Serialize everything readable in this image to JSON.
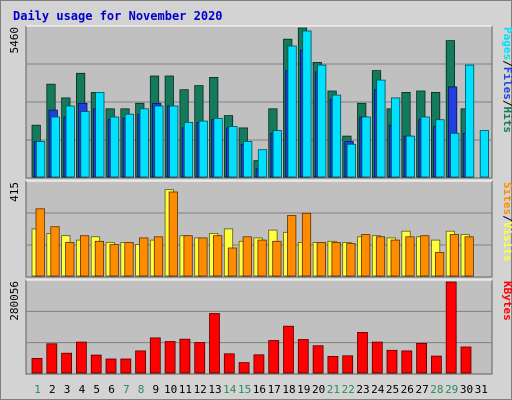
{
  "chart_data": {
    "type": "bar",
    "title": "Daily usage for November 2020",
    "categories": [
      "1",
      "2",
      "3",
      "4",
      "5",
      "6",
      "7",
      "8",
      "9",
      "10",
      "11",
      "12",
      "13",
      "14",
      "15",
      "16",
      "17",
      "18",
      "19",
      "20",
      "21",
      "22",
      "23",
      "24",
      "25",
      "26",
      "27",
      "28",
      "29",
      "30",
      "31"
    ],
    "weekend_days": [
      "1",
      "7",
      "8",
      "14",
      "15",
      "21",
      "22",
      "28",
      "29"
    ],
    "colors": {
      "title": "#0000cc",
      "hits": "#157a5b",
      "files": "#1f3fe0",
      "pages": "#00e0ff",
      "visits": "#ffff40",
      "sites": "#ff8c00",
      "kbytes": "#ff0000",
      "weekday_label": "#000000",
      "weekend_label": "#2a8a5a",
      "plot_background": "#c0c0c0",
      "frame_background": "#d3d3d3"
    },
    "panels": [
      {
        "id": "requests",
        "ymax_label": "5460",
        "ymax": 5460,
        "grid": true,
        "legend": [
          "Pages",
          "Files",
          "Hits"
        ],
        "series": [
          {
            "name": "Hits",
            "color": "#157a5b",
            "values": [
              1900,
              3400,
              2900,
              3800,
              3100,
              2500,
              2500,
              2700,
              3700,
              3700,
              3200,
              3350,
              3650,
              2250,
              1800,
              600,
              2500,
              5050,
              5460,
              4200,
              3150,
              1500,
              2700,
              3900,
              2500,
              3100,
              3150,
              3100,
              5000,
              2500,
              0
            ]
          },
          {
            "name": "Files",
            "color": "#1f3fe0",
            "values": [
              1300,
              2450,
              2200,
              2700,
              2500,
              2100,
              2150,
              2300,
              2700,
              2600,
              1800,
              2000,
              2100,
              1800,
              1200,
              300,
              1600,
              3900,
              4650,
              3850,
              2850,
              1300,
              2200,
              3200,
              1900,
              1500,
              2100,
              1850,
              3300,
              1600,
              0
            ]
          },
          {
            "name": "Pages",
            "color": "#00e0ff",
            "values": [
              1300,
              2200,
              2600,
              2400,
              3100,
              2200,
              2300,
              2500,
              2600,
              2600,
              2000,
              2050,
              2150,
              1850,
              1300,
              1000,
              1700,
              4800,
              5350,
              4100,
              3000,
              1200,
              2200,
              3550,
              2900,
              1500,
              2200,
              2100,
              1600,
              4100,
              1700
            ]
          }
        ]
      },
      {
        "id": "visitors",
        "ymax_label": "415",
        "ymax": 415,
        "grid": true,
        "legend": [
          "Sites",
          "Visits"
        ],
        "series": [
          {
            "name": "Visits",
            "color": "#ffff40",
            "values": [
              210,
              190,
              180,
              160,
              175,
              150,
              150,
              140,
              160,
              385,
              180,
              170,
              190,
              210,
              155,
              170,
              205,
              195,
              150,
              150,
              155,
              150,
              175,
              180,
              170,
              200,
              175,
              160,
              200,
              185,
              0
            ]
          },
          {
            "name": "Sites",
            "color": "#ff8c00",
            "values": [
              300,
              220,
              150,
              180,
              155,
              140,
              150,
              170,
              175,
              375,
              180,
              170,
              180,
              125,
              175,
              160,
              155,
              270,
              280,
              150,
              150,
              145,
              185,
              175,
              160,
              175,
              180,
              105,
              185,
              175,
              0
            ]
          }
        ]
      },
      {
        "id": "traffic",
        "ymax_label": "280056",
        "ymax": 280056,
        "grid": true,
        "legend": [
          "KBytes"
        ],
        "series": [
          {
            "name": "KBytes",
            "color": "#ff0000",
            "values": [
              45000,
              90000,
              61000,
              95000,
              55000,
              43000,
              43000,
              68000,
              108000,
              97000,
              104000,
              94000,
              183000,
              59000,
              32000,
              56000,
              100000,
              144000,
              103000,
              84000,
              51000,
              53000,
              125000,
              95000,
              70000,
              68000,
              91000,
              52000,
              280056,
              80000,
              0
            ]
          }
        ]
      }
    ]
  }
}
